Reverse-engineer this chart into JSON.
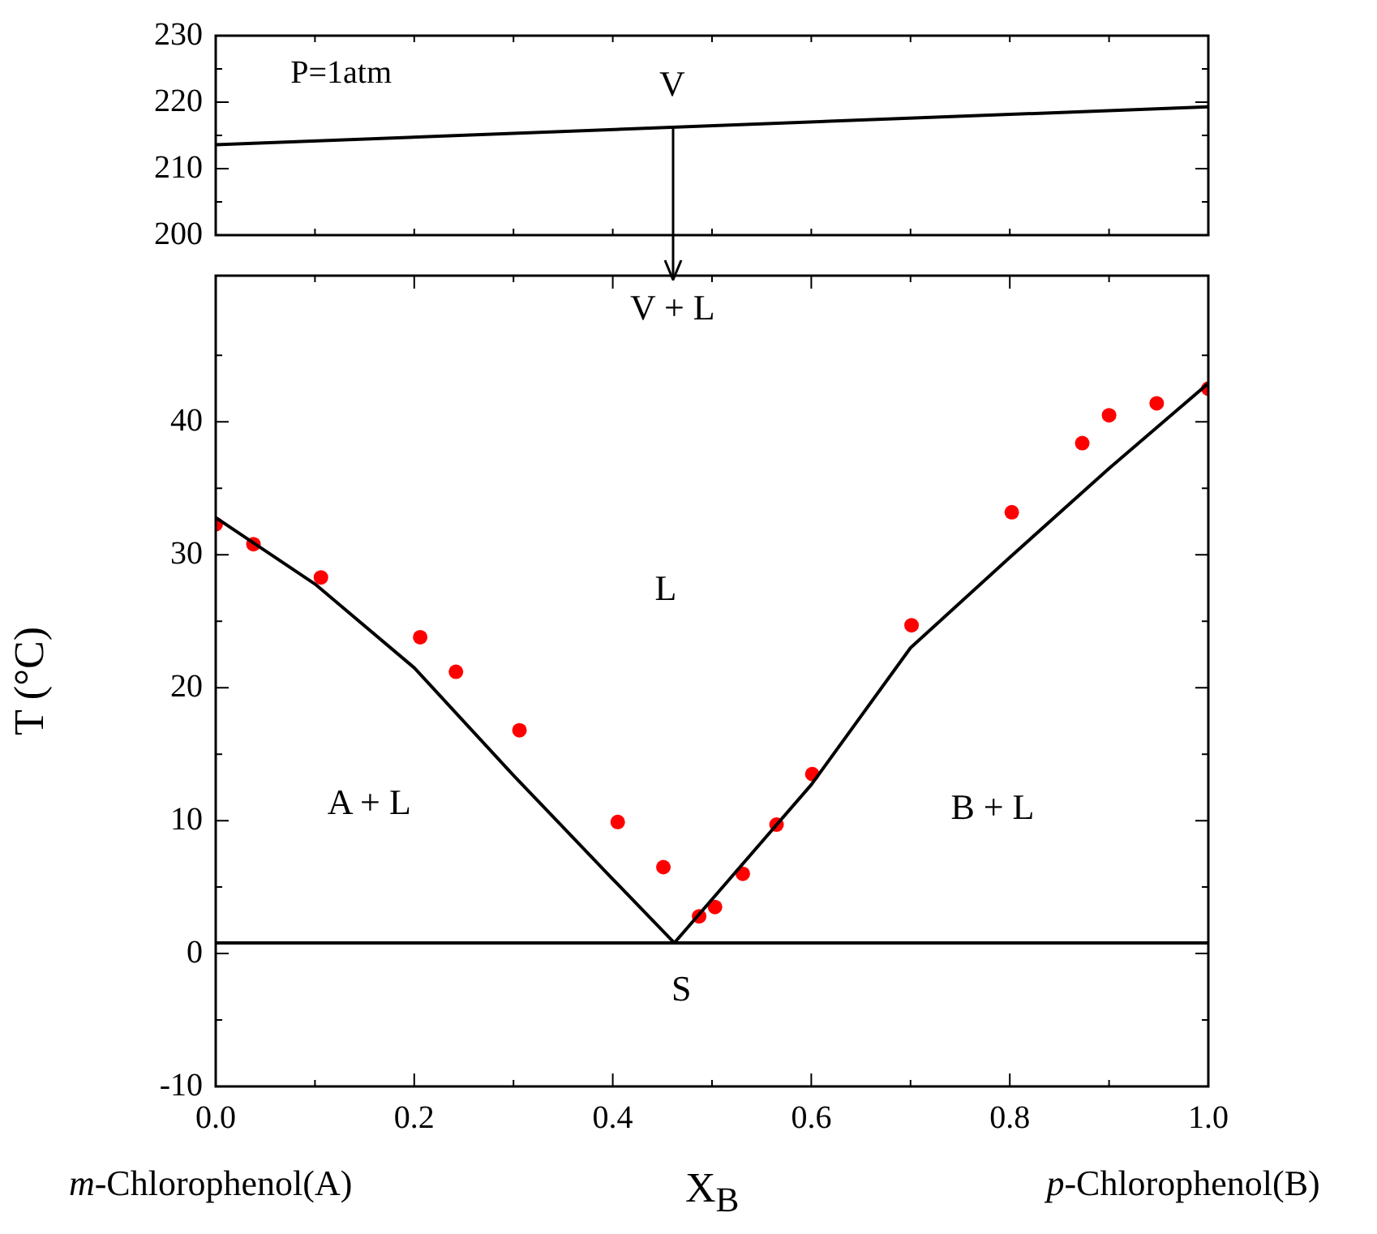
{
  "chart_data": [
    {
      "type": "line",
      "xlim": [
        0,
        1
      ],
      "xticks": [
        0,
        {
          "value": 0.1,
          "label": null
        },
        {
          "value": 0.2,
          "label": null
        },
        {
          "value": 0.3,
          "label": null
        },
        {
          "value": 0.4,
          "label": null
        },
        {
          "value": 0.5,
          "label": null
        },
        {
          "value": 0.6,
          "label": null
        },
        {
          "value": 0.7,
          "label": null
        },
        {
          "value": 0.8,
          "label": null
        },
        {
          "value": 0.9,
          "label": null
        },
        {
          "value": 1,
          "label": null
        }
      ],
      "ylim": [
        200,
        230
      ],
      "yticks": [
        200,
        {
          "value": 205,
          "label": null
        },
        210,
        {
          "value": 215,
          "label": null
        },
        220,
        {
          "value": 225,
          "label": null
        },
        230
      ],
      "tick_labels": "y",
      "grid": false,
      "legend": false,
      "series": [
        {
          "color": "#000000",
          "marker": "none",
          "x": [
            0,
            1
          ],
          "values": [
            213.6,
            219.3
          ]
        }
      ],
      "annotations": [
        "P=1atm",
        "V"
      ]
    },
    {
      "type": "line",
      "xlabel": "X$_{B}$",
      "ylabel": "T (°C)",
      "xlim": [
        0,
        1
      ],
      "xticks": [
        {
          "value": 0,
          "label": "0.0"
        },
        {
          "value": 0.1,
          "label": null
        },
        0.2,
        {
          "value": 0.3,
          "label": null
        },
        0.4,
        {
          "value": 0.5,
          "label": null
        },
        0.6,
        {
          "value": 0.7,
          "label": null
        },
        0.8,
        {
          "value": 0.9,
          "label": null
        },
        {
          "value": 1,
          "label": "1.0"
        }
      ],
      "ylim": [
        -10,
        51
      ],
      "yticks": [
        -10,
        {
          "value": -5,
          "label": null
        },
        0,
        {
          "value": 5,
          "label": null
        },
        10,
        {
          "value": 15,
          "label": null
        },
        20,
        {
          "value": 25,
          "label": null
        },
        30,
        {
          "value": 35,
          "label": null
        },
        40,
        {
          "value": 45,
          "label": null
        }
      ],
      "grid": false,
      "legend": false,
      "series": [
        {
          "color": "#000000",
          "marker": "none",
          "x": [
            0,
            0.1,
            0.2,
            0.3,
            0.4,
            0.462
          ],
          "values": [
            32.8,
            27.8,
            21.5,
            13.4,
            5.6,
            0.8
          ]
        },
        {
          "color": "#000000",
          "marker": "none",
          "x": [
            0.462,
            0.6,
            0.7,
            0.8,
            0.9,
            1.0
          ],
          "values": [
            0.8,
            12.7,
            23.0,
            29.8,
            36.5,
            42.9
          ]
        },
        {
          "type": "scatter",
          "color": "#ff0000",
          "marker": "circle",
          "x": [
            0,
            0.038,
            0.106,
            0.206,
            0.242,
            0.306,
            0.405,
            0.451,
            0.487,
            0.503,
            0.531,
            0.565,
            0.601,
            0.701,
            0.802,
            0.873,
            0.9,
            0.948,
            1.0
          ],
          "values": [
            32.3,
            30.8,
            28.3,
            23.8,
            21.2,
            16.8,
            9.9,
            6.5,
            2.8,
            3.5,
            6.0,
            9.7,
            13.5,
            24.7,
            33.2,
            38.4,
            40.5,
            41.4,
            42.5
          ]
        }
      ],
      "ref_lines": [
        {
          "axis": "y",
          "value": 0.8,
          "color": "#000000",
          "line_style": "solid"
        }
      ],
      "annotations": [
        "m-Chlorophenol(A)",
        "p-Chlorophenol(B)",
        "V + L",
        "L",
        "A + L",
        "B + L",
        "S"
      ]
    }
  ]
}
